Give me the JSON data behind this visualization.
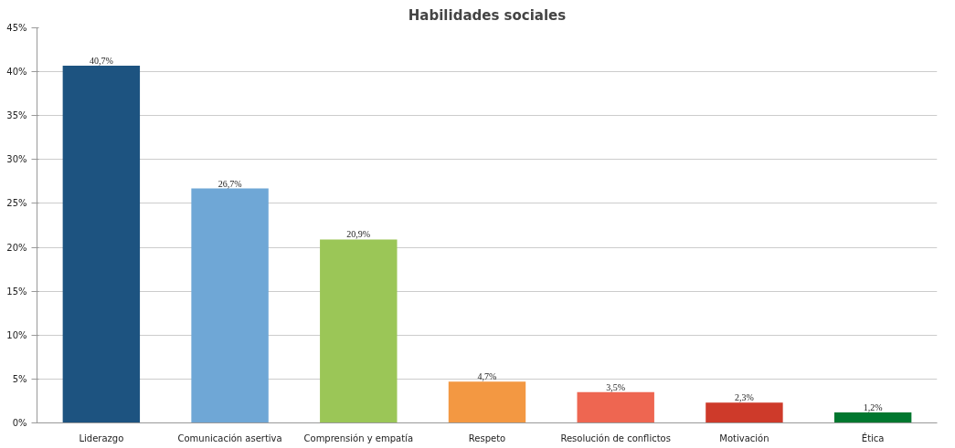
{
  "chart_data": {
    "type": "bar",
    "title": "Habilidades sociales",
    "categories": [
      "Liderazgo",
      "Comunicación asertiva",
      "Comprensión y empatía",
      "Respeto",
      "Resolución de conflictos",
      "Motivación",
      "Ética"
    ],
    "values": [
      40.7,
      26.7,
      20.9,
      4.7,
      3.5,
      2.3,
      1.2
    ],
    "colors": [
      "#1d5380",
      "#6fa7d6",
      "#9bc657",
      "#f39842",
      "#ee6651",
      "#ce3a2a",
      "#00772f"
    ],
    "value_labels": [
      "40,7%",
      "26,7%",
      "20,9%",
      "4,7%",
      "3,5%",
      "2,3%",
      "1,2%"
    ],
    "ylim": [
      0,
      45
    ],
    "yticks": [
      {
        "value": 0,
        "label": "0%"
      },
      {
        "value": 5,
        "label": "5%"
      },
      {
        "value": 10,
        "label": "10%"
      },
      {
        "value": 15,
        "label": "15%"
      },
      {
        "value": 20,
        "label": "20%"
      },
      {
        "value": 25,
        "label": "25%"
      },
      {
        "value": 30,
        "label": "30%"
      },
      {
        "value": 35,
        "label": "35%"
      },
      {
        "value": 40,
        "label": "40%"
      },
      {
        "value": 45,
        "label": "45%"
      }
    ],
    "grid": "y"
  }
}
